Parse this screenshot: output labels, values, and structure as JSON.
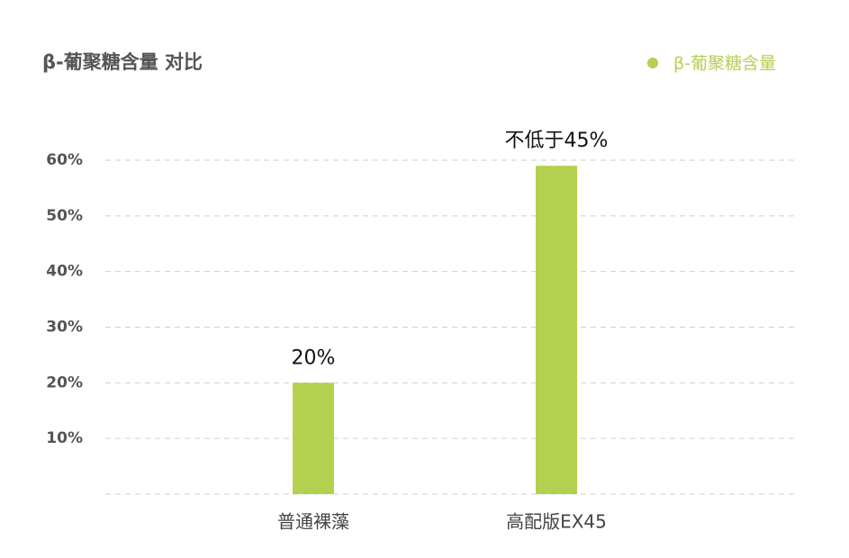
{
  "chart_data": {
    "type": "bar",
    "title": "β-葡聚糖含量 对比",
    "categories": [
      "普通裸藻",
      "高配版EX45"
    ],
    "series": [
      {
        "name": "β-葡聚糖含量",
        "color": "#b3d14f",
        "values": [
          20,
          59
        ],
        "value_labels": [
          "20%",
          "不低于45%"
        ]
      }
    ],
    "ylim": [
      0,
      60
    ],
    "yticks": [
      {
        "value": 10,
        "label": "10%"
      },
      {
        "value": 20,
        "label": "20%"
      },
      {
        "value": 30,
        "label": "30%"
      },
      {
        "value": 40,
        "label": "40%"
      },
      {
        "value": 50,
        "label": "50%"
      },
      {
        "value": 60,
        "label": "60%"
      }
    ],
    "grid": true,
    "legend": "top-right"
  }
}
